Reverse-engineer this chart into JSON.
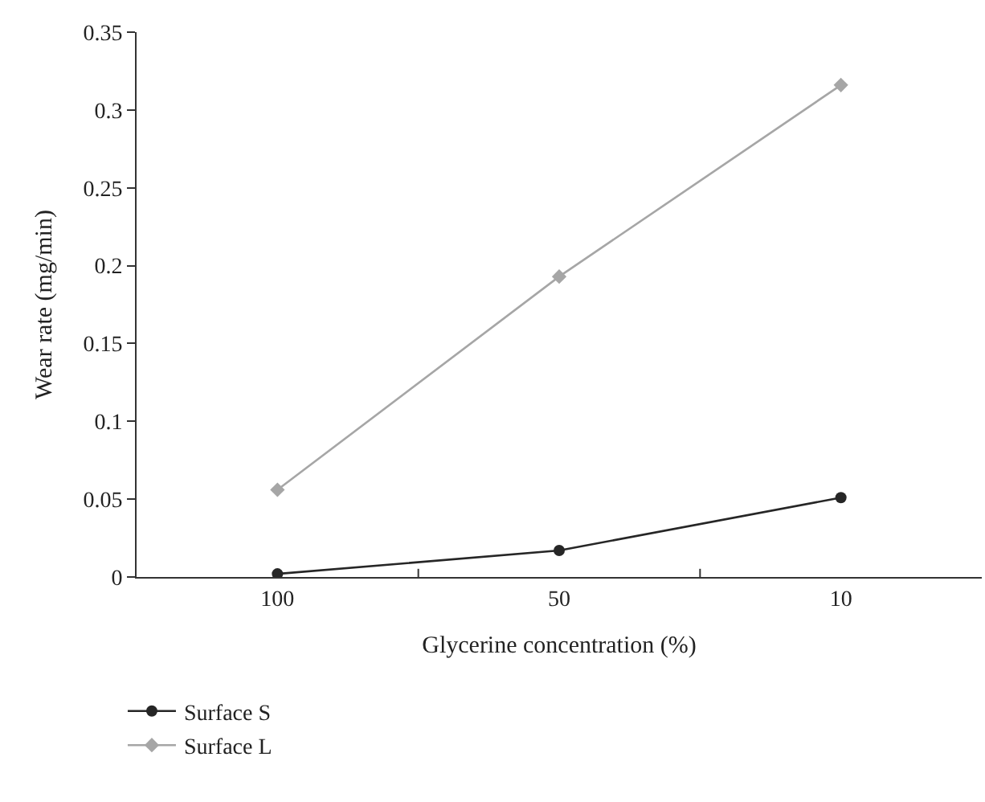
{
  "chart_data": {
    "type": "line",
    "xlabel": "Glycerine concentration (%)",
    "ylabel": "Wear rate (mg/min)",
    "categories": [
      "100",
      "50",
      "10"
    ],
    "series": [
      {
        "name": "Surface S",
        "color": "#262626",
        "marker": "circle",
        "values": [
          0.002,
          0.017,
          0.051
        ]
      },
      {
        "name": "Surface L",
        "color": "#a6a6a6",
        "marker": "diamond",
        "values": [
          0.056,
          0.193,
          0.316
        ]
      }
    ],
    "ylim": [
      0,
      0.35
    ],
    "yticks": [
      {
        "value": 0,
        "label": "0"
      },
      0.05,
      0.1,
      0.15,
      0.2,
      0.25,
      0.3,
      0.35
    ],
    "legend": "bottom left",
    "line_style": "solid"
  }
}
